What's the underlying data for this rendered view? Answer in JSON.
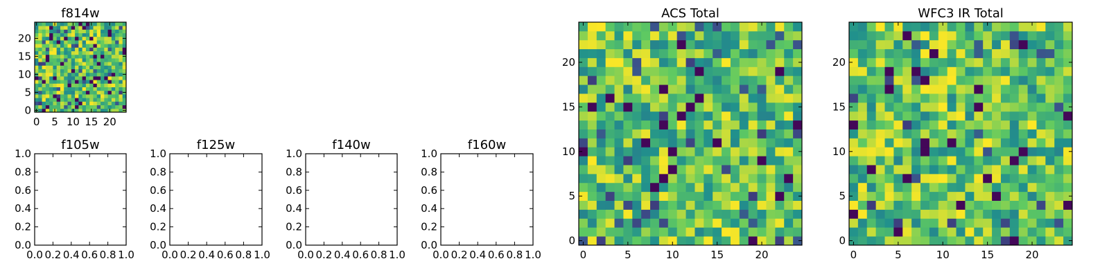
{
  "chart_data": [
    {
      "id": "f814w",
      "type": "heatmap",
      "title": "f814w",
      "grid_size": [
        25,
        25
      ],
      "colormap": "viridis",
      "xlim": [
        -0.5,
        24.5
      ],
      "ylim": [
        -0.5,
        24.5
      ],
      "xticks": [
        "0",
        "5",
        "10",
        "15",
        "20"
      ],
      "yticks": [
        "0",
        "5",
        "10",
        "15",
        "20"
      ],
      "seed": 814,
      "dark_fraction": 0.05
    },
    {
      "id": "f105w",
      "type": "heatmap",
      "title": "f105w",
      "xlim": [
        0.0,
        1.0
      ],
      "ylim": [
        0.0,
        1.0
      ],
      "xticks": [
        "0.0",
        "0.2",
        "0.4",
        "0.6",
        "0.8",
        "1.0"
      ],
      "yticks": [
        "0.0",
        "0.2",
        "0.4",
        "0.6",
        "0.8",
        "1.0"
      ]
    },
    {
      "id": "f125w",
      "type": "heatmap",
      "title": "f125w",
      "xlim": [
        0.0,
        1.0
      ],
      "ylim": [
        0.0,
        1.0
      ],
      "xticks": [
        "0.0",
        "0.2",
        "0.4",
        "0.6",
        "0.8",
        "1.0"
      ],
      "yticks": [
        "0.0",
        "0.2",
        "0.4",
        "0.6",
        "0.8",
        "1.0"
      ]
    },
    {
      "id": "f140w",
      "type": "heatmap",
      "title": "f140w",
      "xlim": [
        0.0,
        1.0
      ],
      "ylim": [
        0.0,
        1.0
      ],
      "xticks": [
        "0.0",
        "0.2",
        "0.4",
        "0.6",
        "0.8",
        "1.0"
      ],
      "yticks": [
        "0.0",
        "0.2",
        "0.4",
        "0.6",
        "0.8",
        "1.0"
      ]
    },
    {
      "id": "f160w",
      "type": "heatmap",
      "title": "f160w",
      "xlim": [
        0.0,
        1.0
      ],
      "ylim": [
        0.0,
        1.0
      ],
      "xticks": [
        "0.0",
        "0.2",
        "0.4",
        "0.6",
        "0.8",
        "1.0"
      ],
      "yticks": [
        "0.0",
        "0.2",
        "0.4",
        "0.6",
        "0.8",
        "1.0"
      ]
    },
    {
      "id": "acs-total",
      "type": "heatmap",
      "title": "ACS Total",
      "grid_size": [
        25,
        25
      ],
      "colormap": "viridis",
      "xlim": [
        -0.5,
        24.5
      ],
      "ylim": [
        -0.5,
        24.5
      ],
      "xticks": [
        "0",
        "5",
        "10",
        "15",
        "20"
      ],
      "yticks": [
        "0",
        "5",
        "10",
        "15",
        "20"
      ],
      "seed": 1234,
      "dark_fraction": 0.04
    },
    {
      "id": "wfc3-ir-total",
      "type": "heatmap",
      "title": "WFC3 IR Total",
      "grid_size": [
        25,
        25
      ],
      "colormap": "viridis",
      "xlim": [
        -0.5,
        24.5
      ],
      "ylim": [
        -0.5,
        24.5
      ],
      "xticks": [
        "0",
        "5",
        "10",
        "15",
        "20"
      ],
      "yticks": [
        "0",
        "5",
        "10",
        "15",
        "20"
      ],
      "seed": 3030,
      "dark_fraction": 0.035
    }
  ],
  "colors": {
    "viridis": [
      "#440154",
      "#3b528b",
      "#21918c",
      "#5ec962",
      "#fde725"
    ],
    "frame": "#000000"
  }
}
